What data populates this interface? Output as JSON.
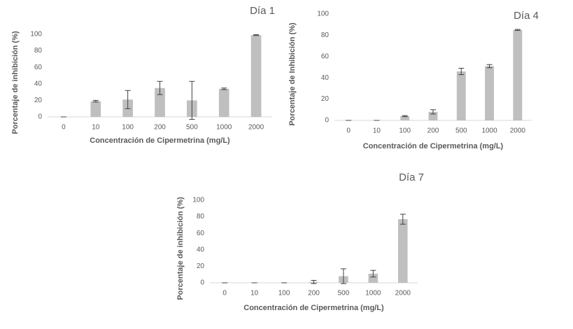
{
  "chart_data": [
    {
      "type": "bar",
      "title": "Día 1",
      "x_label": "Concentración de Cipermetrina (mg/L)",
      "y_label": "Porcentaje de inhibición (%)",
      "categories": [
        "0",
        "10",
        "100",
        "200",
        "500",
        "1000",
        "2000"
      ],
      "values": [
        0,
        19,
        21,
        35,
        20,
        34,
        99
      ],
      "errors": [
        0,
        1,
        11,
        8,
        23,
        1,
        0.5
      ],
      "color": "#bfbfbf",
      "ylim": [
        0,
        100
      ],
      "yticks": [
        0,
        20,
        40,
        60,
        80,
        100
      ]
    },
    {
      "type": "bar",
      "title": "Día 4",
      "x_label": "Concentración de Cipermetrina (mg/L)",
      "y_label": "Porcentaje de Inhibición (%)",
      "categories": [
        "0",
        "10",
        "100",
        "200",
        "500",
        "1000",
        "2000"
      ],
      "values": [
        0,
        0,
        4,
        8,
        46,
        51,
        85
      ],
      "errors": [
        0,
        0,
        0.5,
        2,
        3,
        1.5,
        0.5
      ],
      "color": "#bfbfbf",
      "ylim": [
        0,
        100
      ],
      "yticks": [
        0,
        20,
        40,
        60,
        80,
        100
      ]
    },
    {
      "type": "bar",
      "title": "Día 7",
      "x_label": "Concentración de Cipermetrina (mg/L)",
      "y_label": "Porcentaje de inhibición (%)",
      "categories": [
        "0",
        "10",
        "100",
        "200",
        "500",
        "1000",
        "2000"
      ],
      "values": [
        0,
        0,
        0,
        1,
        8,
        11,
        77
      ],
      "errors": [
        0,
        0,
        0,
        2,
        9,
        4,
        6
      ],
      "color": "#bfbfbf",
      "ylim": [
        0,
        100
      ],
      "yticks": [
        0,
        20,
        40,
        60,
        80,
        100
      ]
    }
  ]
}
